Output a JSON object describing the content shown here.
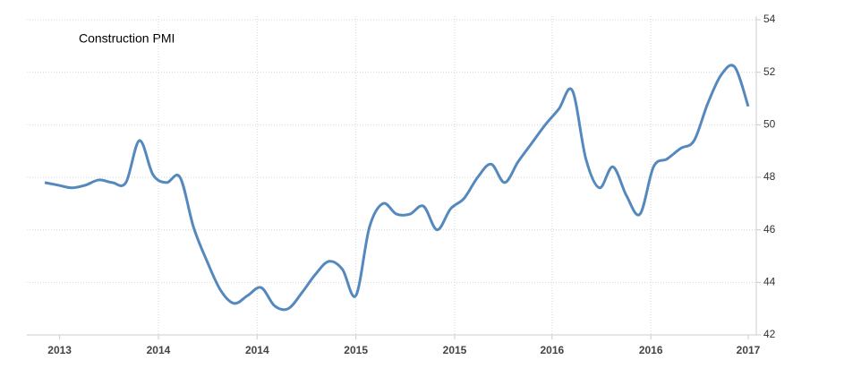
{
  "chart_data": {
    "type": "line",
    "title": "Construction PMI",
    "series": [
      {
        "name": "Construction PMI",
        "color": "#5589bd",
        "values": [
          47.8,
          47.7,
          47.6,
          47.7,
          47.9,
          47.8,
          47.8,
          49.4,
          48.1,
          47.8,
          48.0,
          46.1,
          44.8,
          43.7,
          43.2,
          43.5,
          43.8,
          43.1,
          43.0,
          43.6,
          44.3,
          44.8,
          44.5,
          43.5,
          46.1,
          47.0,
          46.6,
          46.6,
          46.9,
          46.0,
          46.8,
          47.2,
          48.0,
          48.5,
          47.8,
          48.6,
          49.3,
          50.0,
          50.6,
          51.3,
          48.7,
          47.6,
          48.4,
          47.3,
          46.6,
          48.4,
          48.7,
          49.1,
          49.4,
          50.8,
          51.9,
          52.2,
          50.7
        ]
      }
    ],
    "xlim": [
      0,
      52
    ],
    "xticks": [
      {
        "value": 1.1,
        "label": "2013"
      },
      {
        "value": 8.4,
        "label": "2014"
      },
      {
        "value": 15.7,
        "label": "2014"
      },
      {
        "value": 23,
        "label": "2015"
      },
      {
        "value": 30.3,
        "label": "2015"
      },
      {
        "value": 37.5,
        "label": "2016"
      },
      {
        "value": 44.8,
        "label": "2016"
      },
      {
        "value": 52,
        "label": "2017"
      }
    ],
    "ylim": [
      42,
      54
    ],
    "yticks": [
      42,
      44,
      46,
      48,
      50,
      52,
      54
    ],
    "grid": true
  }
}
